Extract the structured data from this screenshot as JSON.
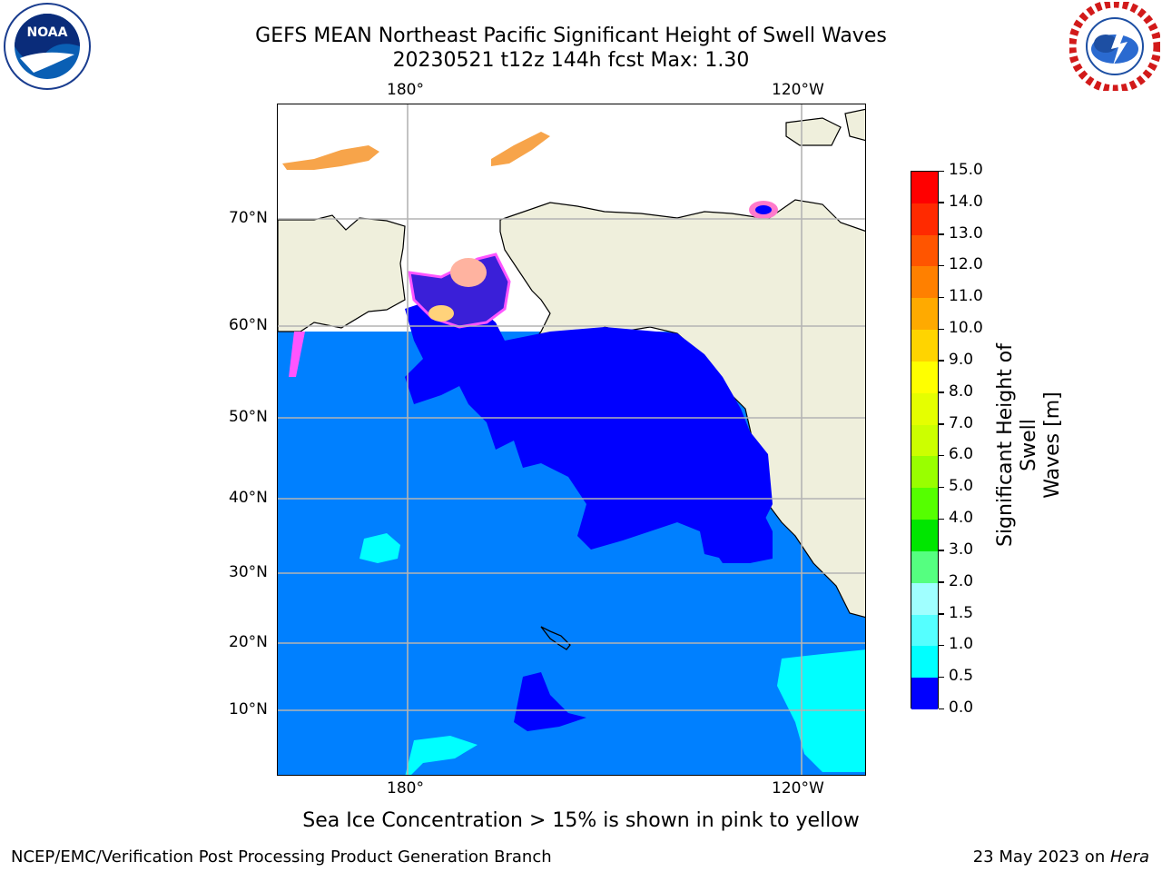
{
  "title": {
    "line1": "GEFS MEAN Northeast Pacific Significant Height of Swell Waves",
    "line2": "20230521 t12z 144h fcst   Max: 1.30"
  },
  "logos": {
    "left": "NOAA",
    "right": "NATIONAL WEATHER SERVICE"
  },
  "axes": {
    "lon_top": [
      "180°",
      "120°W"
    ],
    "lon_bottom": [
      "180°",
      "120°W"
    ],
    "lat": [
      "70°N",
      "60°N",
      "50°N",
      "40°N",
      "30°N",
      "20°N",
      "10°N"
    ]
  },
  "colorbar": {
    "label_line1": "Significant Height of Swell",
    "label_line2": "Waves [m]",
    "ticks": [
      "15.0",
      "14.0",
      "13.0",
      "12.0",
      "11.0",
      "10.0",
      "9.0",
      "8.0",
      "7.0",
      "6.0",
      "5.0",
      "4.0",
      "3.0",
      "2.0",
      "1.5",
      "1.0",
      "0.5",
      "0.0"
    ],
    "colors": [
      "#ff0000",
      "#ff2a00",
      "#ff5500",
      "#ff8000",
      "#ffaa00",
      "#ffd400",
      "#ffff00",
      "#e5ff00",
      "#ccff00",
      "#99ff00",
      "#55ff00",
      "#00e600",
      "#55ff80",
      "#a0ffff",
      "#55ffff",
      "#00ffff",
      "#0080ff",
      "#0000ff"
    ],
    "ocean_color": "#0080ff",
    "low_color": "#0000ff",
    "land_color": "#efefdc"
  },
  "caption": "Sea Ice Concentration > 15% is shown in pink to yellow",
  "footer": {
    "left": "NCEP/EMC/Verification Post Processing Product Generation Branch",
    "right_date": "23 May 2023 on ",
    "right_host": "Hera"
  }
}
